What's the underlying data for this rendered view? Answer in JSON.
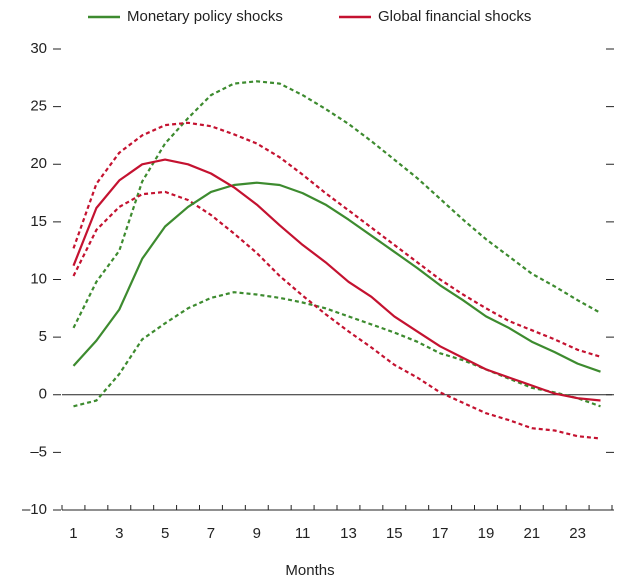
{
  "chart_data": {
    "type": "line",
    "x_label": "Months",
    "categories": [
      "1",
      null,
      "3",
      null,
      "5",
      null,
      "7",
      null,
      "9",
      null,
      "11",
      null,
      "13",
      null,
      "15",
      null,
      "17",
      null,
      "19",
      null,
      "21",
      null,
      "23",
      null
    ],
    "series": [
      {
        "name": "Monetary policy shocks",
        "color": "#3d8b2f",
        "values": [
          2.5,
          4.7,
          7.4,
          11.8,
          14.6,
          16.3,
          17.6,
          18.2,
          18.4,
          18.2,
          17.5,
          16.5,
          15.2,
          13.8,
          12.4,
          11.0,
          9.5,
          8.2,
          6.8,
          5.8,
          4.6,
          3.7,
          2.7,
          2.0
        ],
        "upper": [
          5.8,
          9.8,
          12.5,
          18.5,
          21.8,
          24.0,
          26.0,
          27.0,
          27.2,
          27.0,
          26.0,
          24.8,
          23.5,
          22.0,
          20.4,
          18.8,
          17.0,
          15.2,
          13.5,
          12.0,
          10.5,
          9.4,
          8.2,
          7.1
        ],
        "lower": [
          -1.0,
          -0.5,
          1.8,
          4.8,
          6.2,
          7.5,
          8.4,
          8.9,
          8.7,
          8.4,
          8.0,
          7.5,
          6.8,
          6.1,
          5.4,
          4.6,
          3.6,
          3.0,
          2.2,
          1.4,
          0.6,
          0.2,
          -0.3,
          -1.0
        ]
      },
      {
        "name": "Global financial shocks",
        "color": "#c41230",
        "values": [
          11.2,
          16.2,
          18.6,
          20.0,
          20.4,
          20.0,
          19.2,
          18.0,
          16.5,
          14.7,
          13.0,
          11.5,
          9.8,
          8.5,
          6.8,
          5.5,
          4.2,
          3.2,
          2.2,
          1.5,
          0.8,
          0.1,
          -0.3,
          -0.5
        ],
        "upper": [
          12.7,
          18.3,
          21.0,
          22.5,
          23.4,
          23.6,
          23.3,
          22.6,
          21.8,
          20.6,
          19.1,
          17.5,
          16.0,
          14.5,
          13.0,
          11.5,
          10.0,
          8.7,
          7.5,
          6.4,
          5.6,
          4.8,
          3.9,
          3.3
        ],
        "lower": [
          10.3,
          14.3,
          16.3,
          17.4,
          17.6,
          16.9,
          15.6,
          14.0,
          12.3,
          10.3,
          8.6,
          7.0,
          5.5,
          4.1,
          2.6,
          1.5,
          0.2,
          -0.7,
          -1.6,
          -2.2,
          -2.9,
          -3.1,
          -3.6,
          -3.8
        ]
      }
    ],
    "ylim": [
      -10,
      30
    ],
    "yticks": [
      {
        "value": -10,
        "label": "–10"
      },
      {
        "value": -5,
        "label": "–5"
      },
      0,
      5,
      10,
      15,
      20,
      25,
      30
    ],
    "zero_line": true
  }
}
